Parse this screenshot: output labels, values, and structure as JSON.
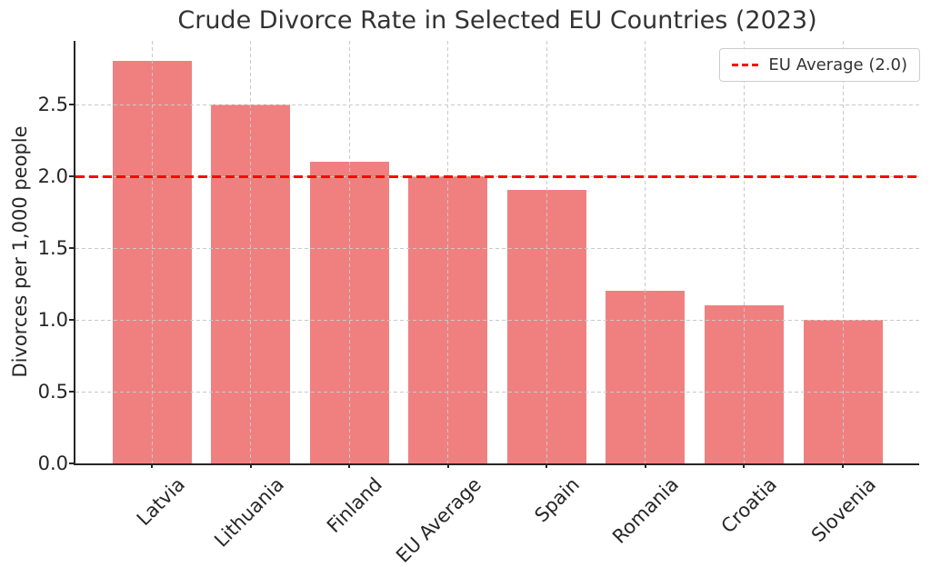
{
  "chart_data": {
    "type": "bar",
    "title": "Crude Divorce Rate in Selected EU Countries (2023)",
    "xlabel": "",
    "ylabel": "Divorces per 1,000 people",
    "categories": [
      "Latvia",
      "Lithuania",
      "Finland",
      "EU Average",
      "Spain",
      "Romania",
      "Croatia",
      "Slovenia"
    ],
    "values": [
      2.8,
      2.5,
      2.1,
      2.0,
      1.9,
      1.2,
      1.1,
      1.0
    ],
    "ylim": [
      0,
      2.94
    ],
    "yticks": [
      0.0,
      0.5,
      1.0,
      1.5,
      2.0,
      2.5
    ],
    "grid": true,
    "bar_color": "#f08080",
    "reference_line": {
      "value": 2.0,
      "label": "EU Average (2.0)",
      "color": "#ff0000",
      "style": "dashed"
    },
    "legend_position": "upper right"
  },
  "colors": {
    "grid": "#c9c9c9",
    "spine": "#262626",
    "text": "#262626",
    "title": "#333333"
  }
}
